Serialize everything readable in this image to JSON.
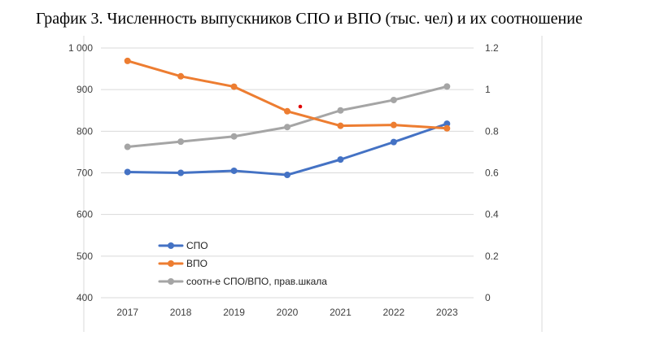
{
  "title": "График 3. Численность выпускников СПО и ВПО (тыс. чел) и их соотношение",
  "chart_data": {
    "type": "line",
    "title": "График 3. Численность выпускников СПО и ВПО (тыс. чел) и их соотношение",
    "categories": [
      "2017",
      "2018",
      "2019",
      "2020",
      "2021",
      "2022",
      "2023"
    ],
    "y_left": {
      "ylim": [
        400,
        1000
      ],
      "ticks": [
        400,
        500,
        600,
        700,
        800,
        900,
        1000
      ],
      "tick_labels": [
        "400",
        "500",
        "600",
        "700",
        "800",
        "900",
        "1 000"
      ]
    },
    "y_right": {
      "ylim": [
        0,
        1.2
      ],
      "ticks": [
        0,
        0.2,
        0.4,
        0.6,
        0.8,
        1,
        1.2
      ],
      "tick_labels": [
        "0",
        "0.2",
        "0.4",
        "0.6",
        "0.8",
        "1",
        "1.2"
      ]
    },
    "grid": true,
    "legend_position": "bottom-left",
    "series": [
      {
        "name": "СПО",
        "axis": "left",
        "color": "#4472c4",
        "values": [
          702,
          700,
          705,
          695,
          732,
          774,
          818
        ]
      },
      {
        "name": "ВПО",
        "axis": "left",
        "color": "#ed7d31",
        "values": [
          969,
          932,
          907,
          848,
          813,
          815,
          807
        ]
      },
      {
        "name": "соотн-е СПО/ВПО, прав.шкала",
        "axis": "right",
        "color": "#a5a5a5",
        "values": [
          0.725,
          0.75,
          0.775,
          0.82,
          0.9,
          0.95,
          1.015
        ]
      }
    ]
  }
}
